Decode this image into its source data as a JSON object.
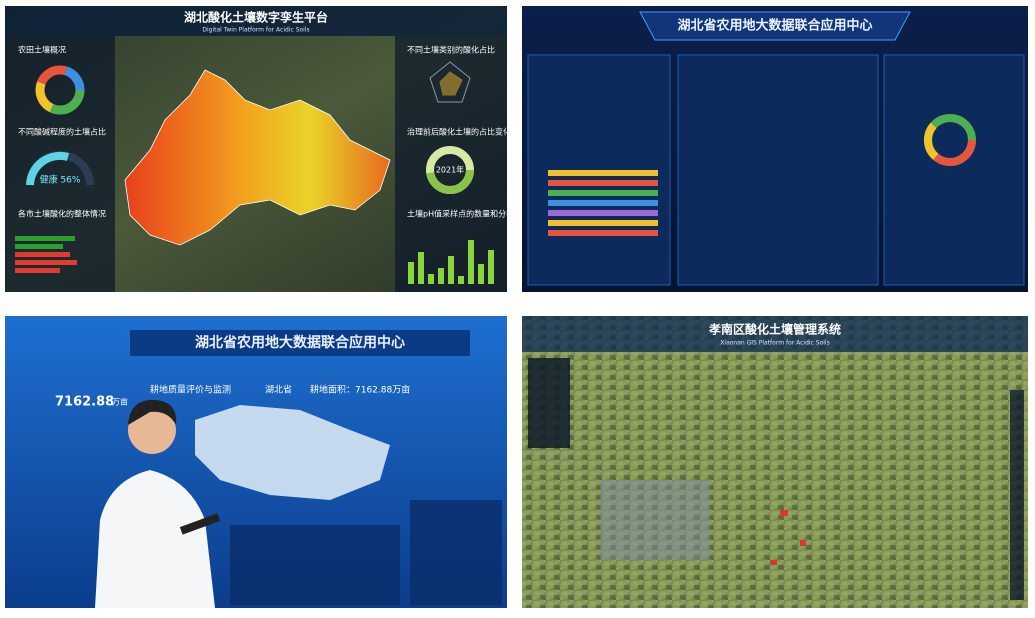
{
  "panels": [
    {
      "title": "湖北酸化土壤数字孪生平台",
      "subtitle": "Digital Twin Platform for Acidic Soils",
      "cards": [
        "农田土壤概况",
        "不同土壤类别的酸化占比",
        "不同酸碱程度的土壤占比",
        "治理前后酸化土壤的占比变化",
        "各市土壤酸化的整体情况",
        "土壤pH值采样点的数量和分布"
      ],
      "gauge_label": "健康 56%",
      "ring_label": "2021年"
    },
    {
      "title": "湖北省农用地大数据联合应用中心"
    },
    {
      "title": "湖北省农用地大数据联合应用中心",
      "section": "耕地质量评价与监测",
      "region": "湖北省",
      "area_label": "耕地面积：7162.88万亩",
      "total": "7162.88",
      "unit": "万亩"
    },
    {
      "title": "孝南区酸化土壤管理系统",
      "subtitle": "Xiaonan GIS Platform for Acidic Soils"
    }
  ]
}
